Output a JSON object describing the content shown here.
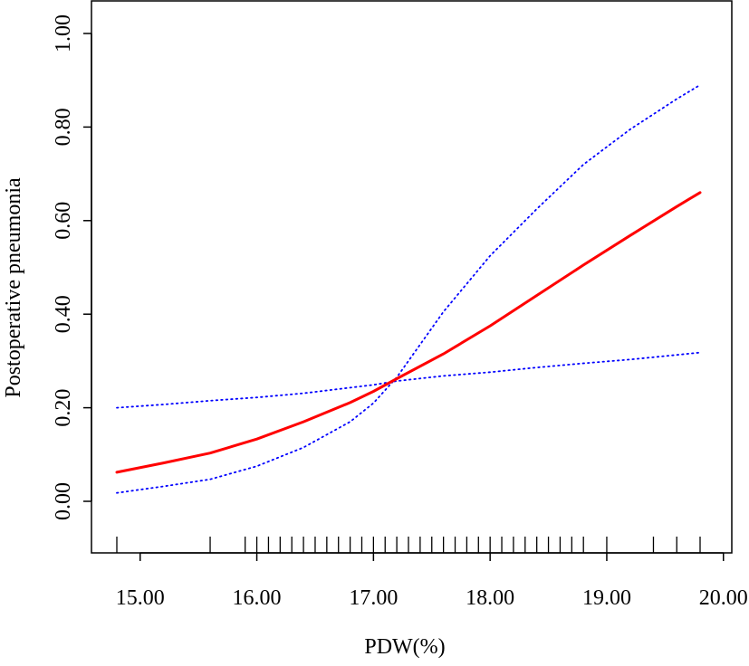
{
  "chart_data": {
    "type": "line",
    "xlabel": "PDW(%)",
    "ylabel": "Postoperative pneumonia",
    "xlim": [
      14.8,
      19.8
    ],
    "ylim": [
      -0.1,
      1.05
    ],
    "x_ticks": [
      "15.00",
      "16.00",
      "17.00",
      "18.00",
      "19.00",
      "20.00"
    ],
    "x_tick_values": [
      15,
      16,
      17,
      18,
      19,
      20
    ],
    "y_ticks": [
      "0.00",
      "0.20",
      "0.40",
      "0.60",
      "0.80",
      "1.00"
    ],
    "y_tick_values": [
      0,
      0.2,
      0.4,
      0.6,
      0.8,
      1.0
    ],
    "grid": false,
    "series": [
      {
        "role": "estimate",
        "color": "#ff0000",
        "style": "solid",
        "x": [
          14.8,
          15.2,
          15.6,
          16.0,
          16.4,
          16.8,
          17.0,
          17.2,
          17.6,
          18.0,
          18.4,
          18.8,
          19.2,
          19.6,
          19.8
        ],
        "y": [
          0.062,
          0.082,
          0.103,
          0.133,
          0.17,
          0.211,
          0.235,
          0.262,
          0.315,
          0.375,
          0.44,
          0.505,
          0.568,
          0.63,
          0.66
        ]
      },
      {
        "role": "upper-ci",
        "color": "#0000ff",
        "style": "dotted",
        "x": [
          14.8,
          15.2,
          15.6,
          16.0,
          16.4,
          16.8,
          17.0,
          17.2,
          17.6,
          18.0,
          18.4,
          18.8,
          19.2,
          19.6,
          19.8
        ],
        "y": [
          0.2,
          0.207,
          0.215,
          0.222,
          0.231,
          0.243,
          0.249,
          0.257,
          0.268,
          0.276,
          0.286,
          0.295,
          0.303,
          0.313,
          0.318
        ]
      },
      {
        "role": "lower-ci",
        "color": "#0000ff",
        "style": "dotted",
        "x": [
          14.8,
          15.2,
          15.6,
          16.0,
          16.4,
          16.8,
          17.0,
          17.2,
          17.6,
          18.0,
          18.4,
          18.8,
          19.2,
          19.6,
          19.8
        ],
        "y": [
          0.018,
          0.032,
          0.047,
          0.075,
          0.115,
          0.17,
          0.21,
          0.265,
          0.405,
          0.525,
          0.625,
          0.72,
          0.795,
          0.86,
          0.89
        ]
      }
    ],
    "rug_x": [
      14.8,
      15.6,
      15.9,
      16.0,
      16.1,
      16.2,
      16.3,
      16.4,
      16.5,
      16.6,
      16.7,
      16.8,
      16.9,
      17.0,
      17.1,
      17.2,
      17.3,
      17.4,
      17.5,
      17.6,
      17.7,
      17.8,
      17.9,
      18.0,
      18.1,
      18.2,
      18.3,
      18.4,
      18.5,
      18.6,
      18.7,
      18.8,
      19.0,
      19.4,
      19.6,
      19.8
    ]
  }
}
